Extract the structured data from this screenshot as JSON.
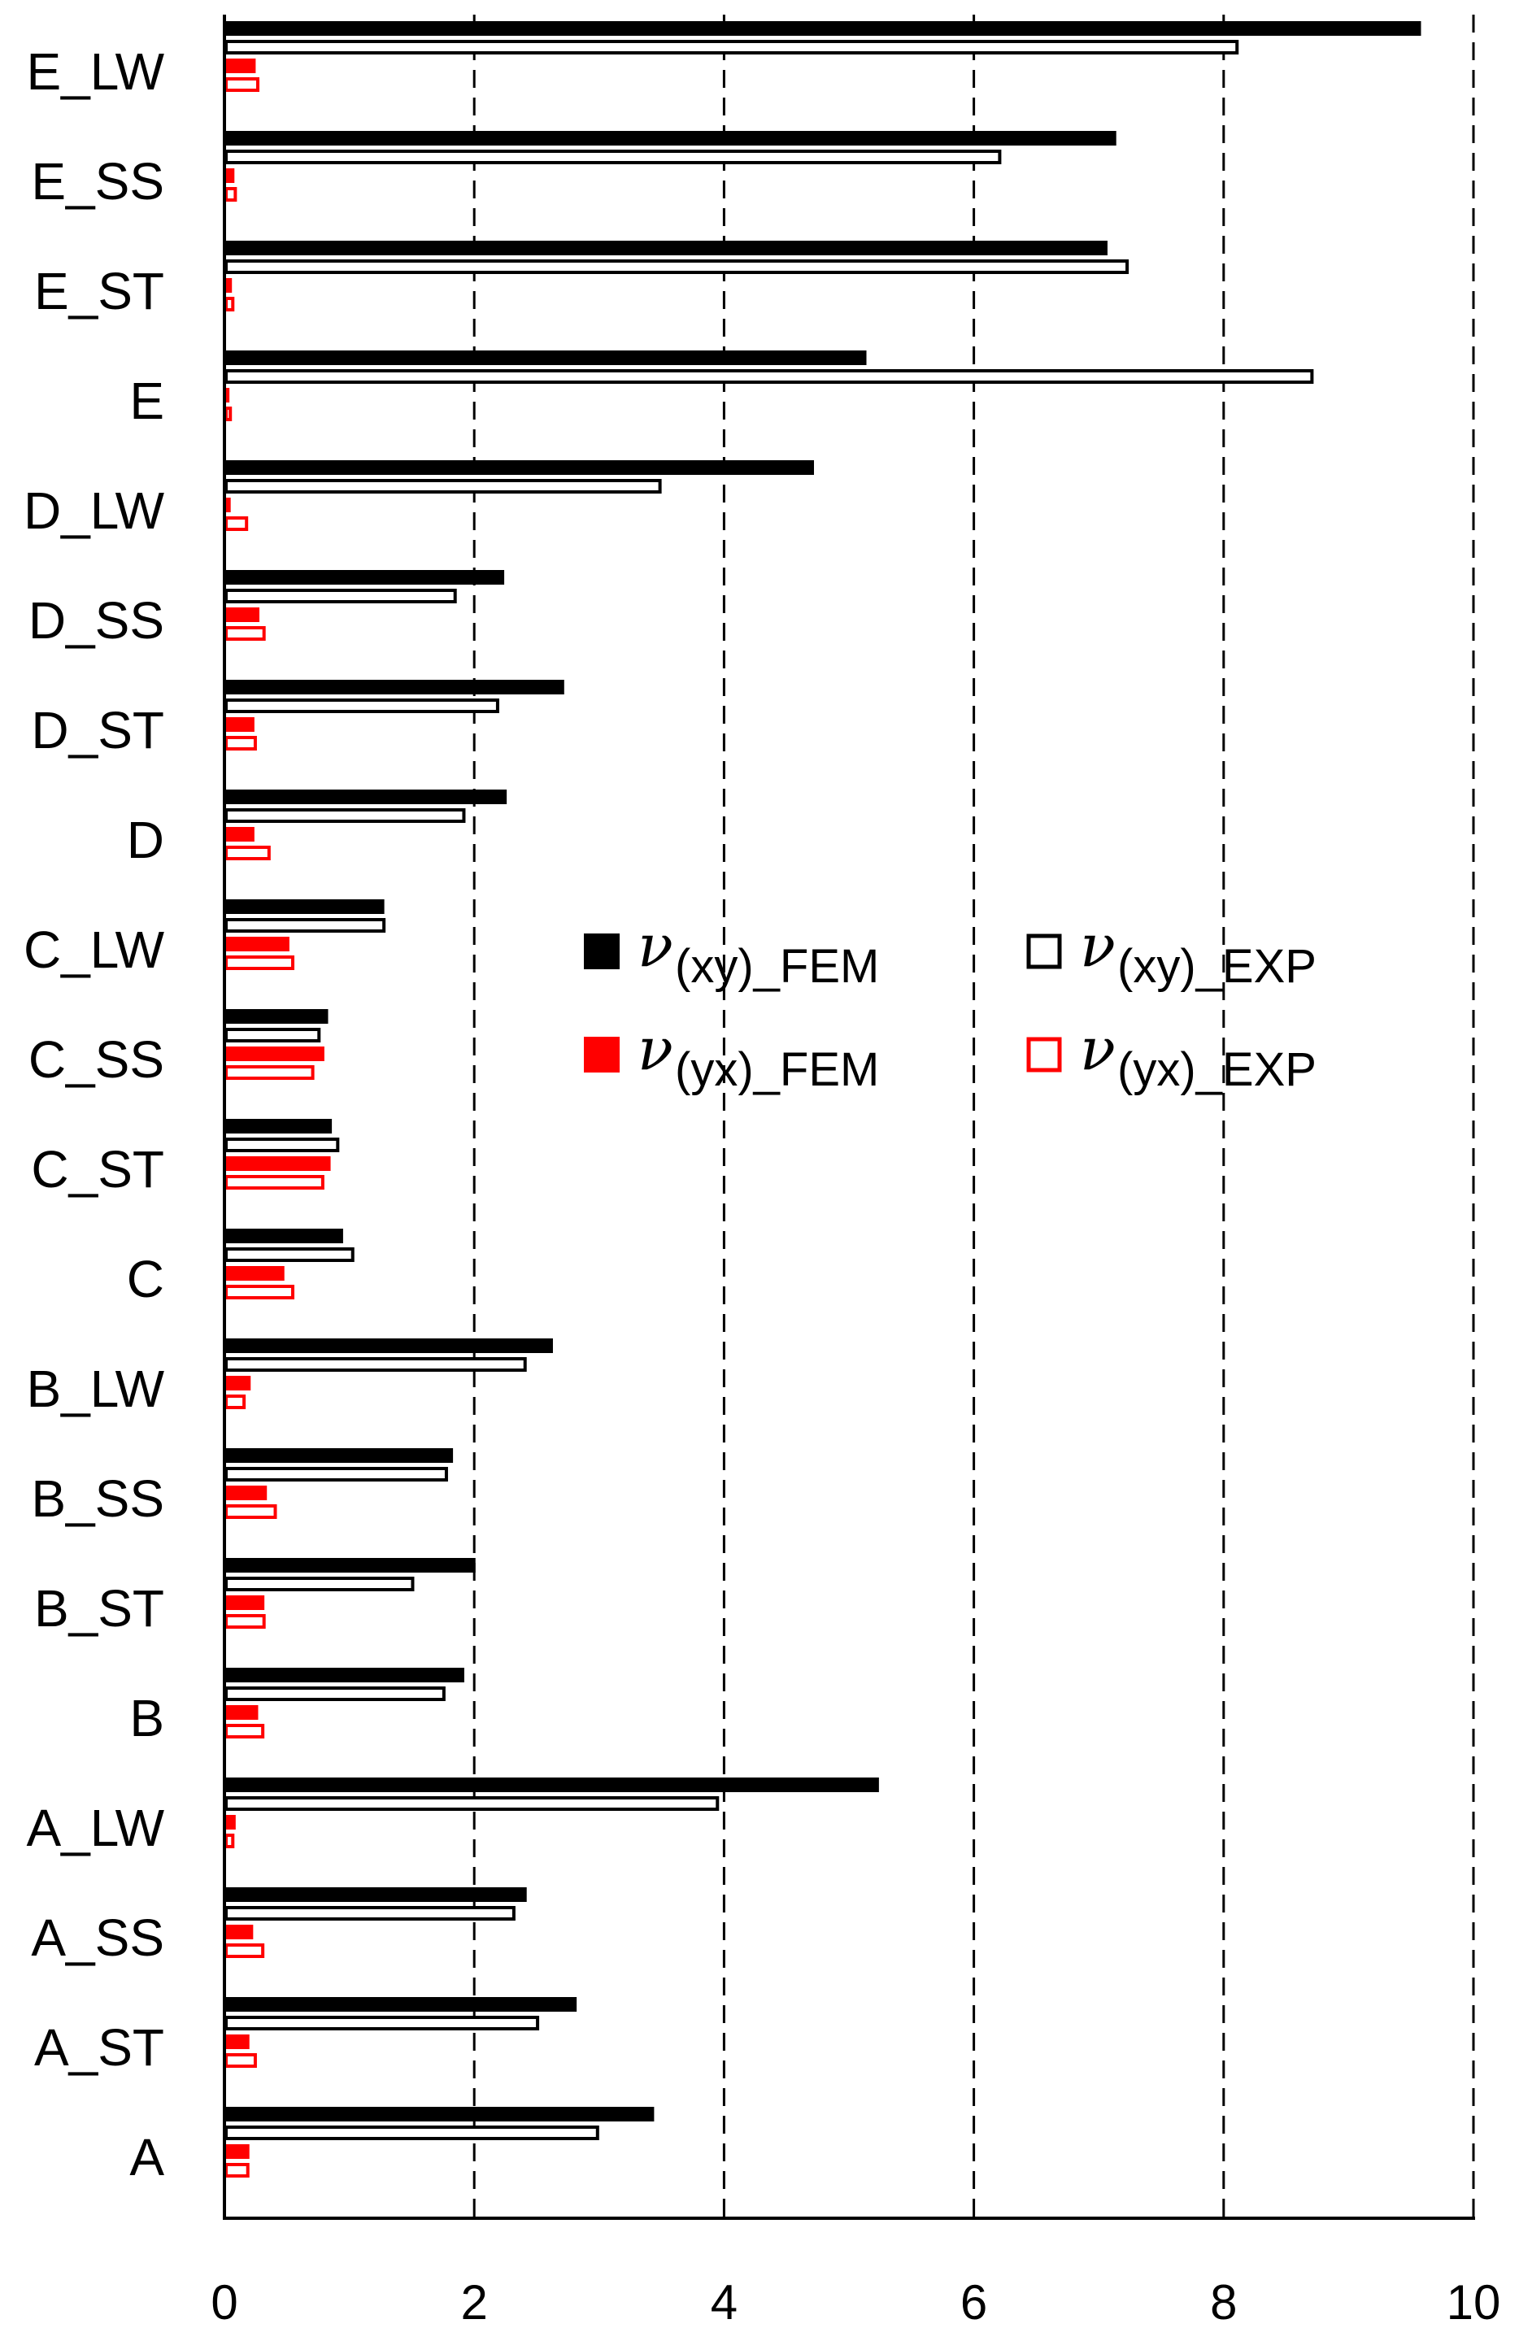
{
  "chart_data": {
    "type": "bar",
    "orientation": "horizontal",
    "title": "",
    "xlabel": "",
    "ylabel": "",
    "xlim": [
      0,
      10
    ],
    "xticks": [
      0,
      2,
      4,
      6,
      8,
      10
    ],
    "grid": "vertical dashed",
    "legend_position": "center-right",
    "categories": [
      "E_LW",
      "E_SS",
      "E_ST",
      "E",
      "D_LW",
      "D_SS",
      "D_ST",
      "D",
      "C_LW",
      "C_SS",
      "C_ST",
      "C",
      "B_LW",
      "B_SS",
      "B_ST",
      "B",
      "A_LW",
      "A_SS",
      "A_ST",
      "A"
    ],
    "series": [
      {
        "name": "(xy)_FEM",
        "symbol": "ν",
        "color": "#000000",
        "style": "filled",
        "values": [
          9.58,
          7.14,
          7.07,
          5.14,
          4.72,
          2.24,
          2.72,
          2.26,
          1.28,
          0.83,
          0.86,
          0.95,
          2.63,
          1.83,
          2.01,
          1.92,
          5.24,
          2.42,
          2.82,
          3.44
        ]
      },
      {
        "name": "(xy)_EXP",
        "symbol": "ν",
        "color": "#000000",
        "style": "outline",
        "values": [
          8.12,
          6.22,
          7.24,
          8.72,
          3.5,
          1.86,
          2.2,
          1.93,
          1.29,
          0.77,
          0.92,
          1.04,
          2.42,
          1.79,
          1.52,
          1.77,
          3.96,
          2.33,
          2.52,
          3.0
        ]
      },
      {
        "name": "(yx)_FEM",
        "symbol": "ν",
        "color": "#ff0000",
        "style": "filled",
        "values": [
          0.25,
          0.08,
          0.06,
          0.04,
          0.05,
          0.28,
          0.24,
          0.24,
          0.52,
          0.8,
          0.85,
          0.48,
          0.21,
          0.34,
          0.32,
          0.27,
          0.09,
          0.23,
          0.2,
          0.2
        ]
      },
      {
        "name": "(yx)_EXP",
        "symbol": "ν",
        "color": "#ff0000",
        "style": "outline",
        "values": [
          0.28,
          0.1,
          0.08,
          0.06,
          0.19,
          0.33,
          0.26,
          0.37,
          0.56,
          0.72,
          0.8,
          0.56,
          0.17,
          0.42,
          0.33,
          0.32,
          0.08,
          0.32,
          0.26,
          0.2
        ]
      }
    ]
  }
}
